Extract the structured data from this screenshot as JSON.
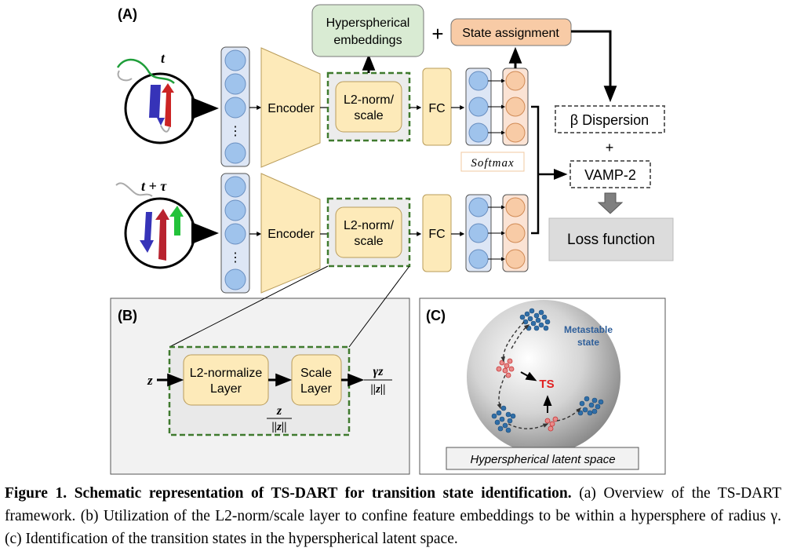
{
  "panel_a": {
    "label": "(A)",
    "time_t": "t",
    "time_t_tau": "t + τ",
    "encoder_label": "Encoder",
    "l2_norm_line1": "L2-norm/",
    "l2_norm_line2": "scale",
    "fc_label": "FC",
    "ellipsis": "⋮",
    "softmax_label": "Softmax",
    "hyperspherical_line1": "Hyperspherical",
    "hyperspherical_line2": "embeddings",
    "plus_sign": "+",
    "state_assignment": "State assignment",
    "beta_dispersion": "β Dispersion",
    "plus_sign_2": "+",
    "vamp2": "VAMP-2",
    "loss_function": "Loss function",
    "colors": {
      "node_blue": "#9fc3ec",
      "node_orange": "#f8cba6",
      "box_yellow": "#fdeab9",
      "box_green": "#d9ebd3",
      "dashed_green": "#3f7a2e"
    }
  },
  "panel_b": {
    "label": "(B)",
    "input_z": "z",
    "normalize_line1": "L2-normalize",
    "normalize_line2": "Layer",
    "scale_line1": "Scale",
    "scale_line2": "Layer",
    "mid_num": "z",
    "mid_den": "||z||",
    "out_num": "γz",
    "out_den": "||z||"
  },
  "panel_c": {
    "label": "(C)",
    "metastable_line1": "Metastable",
    "metastable_line2": "state",
    "ts_label": "TS",
    "latent_space": "Hyperspherical latent space"
  },
  "caption": {
    "bold": "Figure 1. Schematic representation of TS-DART for transition state identification.",
    "text": " (a) Overview of the TS-DART framework. (b) Utilization of the L2-norm/scale layer to confine feature embeddings to be within a hypersphere of radius γ. (c) Identification of the transition states in the hyperspherical latent space."
  }
}
